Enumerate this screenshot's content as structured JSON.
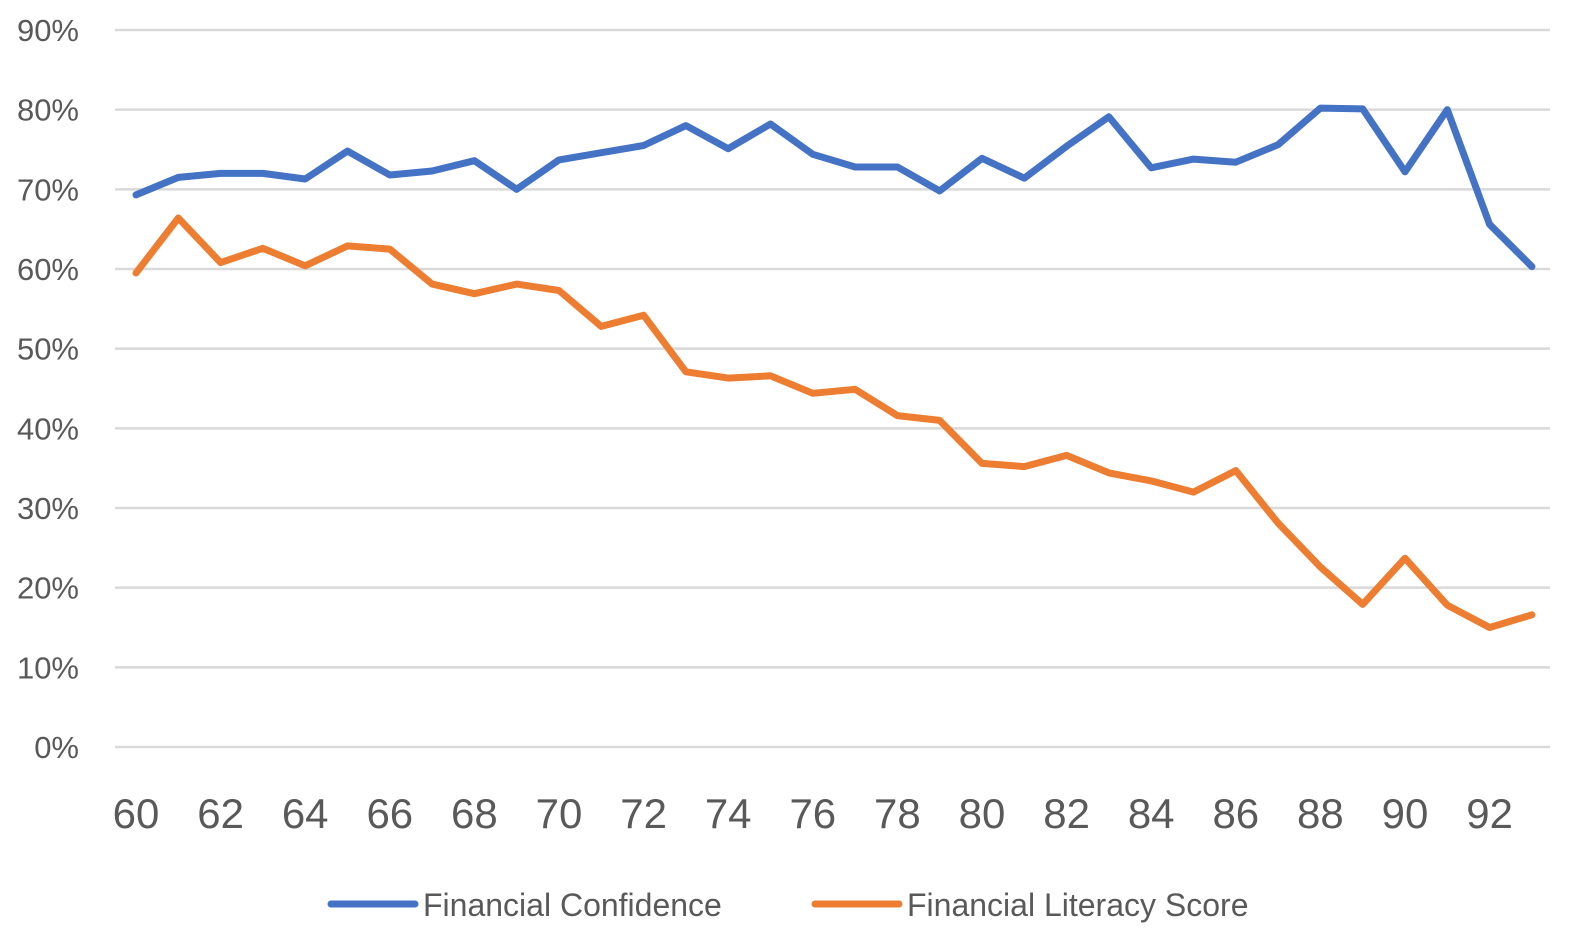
{
  "chart_data": {
    "type": "line",
    "x": [
      60,
      61,
      62,
      63,
      64,
      65,
      66,
      67,
      68,
      69,
      70,
      71,
      72,
      73,
      74,
      75,
      76,
      77,
      78,
      79,
      80,
      81,
      82,
      83,
      84,
      85,
      86,
      87,
      88,
      89,
      90,
      91,
      92,
      93
    ],
    "x_tick_labels": [
      "60",
      "62",
      "64",
      "66",
      "68",
      "70",
      "72",
      "74",
      "76",
      "78",
      "80",
      "82",
      "84",
      "86",
      "88",
      "90",
      "92"
    ],
    "y_tick_labels": [
      "0%",
      "10%",
      "20%",
      "30%",
      "40%",
      "50%",
      "60%",
      "70%",
      "80%",
      "90%"
    ],
    "ylim": [
      0,
      90
    ],
    "grid": "horizontal",
    "legend_position": "bottom",
    "series": [
      {
        "name": "Financial Confidence",
        "color": "#4472C4",
        "values": [
          69.3,
          71.5,
          72.0,
          72.0,
          71.3,
          74.8,
          71.8,
          72.3,
          73.6,
          70.0,
          73.7,
          74.6,
          75.5,
          78.0,
          75.1,
          78.2,
          74.4,
          72.8,
          72.8,
          69.8,
          73.9,
          71.4,
          75.4,
          79.1,
          72.7,
          73.8,
          73.4,
          75.6,
          80.2,
          80.1,
          72.2,
          80.0,
          65.6,
          60.3
        ]
      },
      {
        "name": "Financial Literacy Score",
        "color": "#ED7D31",
        "values": [
          59.5,
          66.4,
          60.8,
          62.6,
          60.4,
          62.9,
          62.5,
          58.1,
          56.9,
          58.1,
          57.3,
          52.8,
          54.2,
          47.1,
          46.3,
          46.6,
          44.4,
          44.9,
          41.6,
          41.0,
          35.6,
          35.2,
          36.6,
          34.4,
          33.4,
          32.0,
          34.7,
          28.1,
          22.6,
          17.9,
          23.7,
          17.8,
          15.0,
          16.6
        ]
      }
    ]
  }
}
